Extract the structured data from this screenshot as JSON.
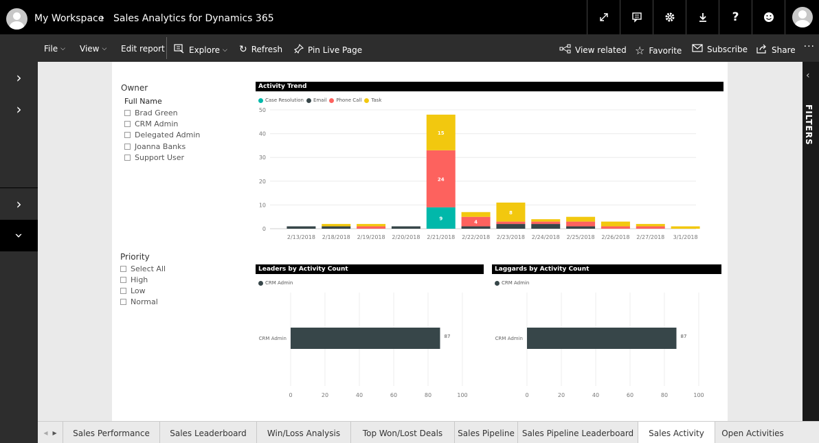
{
  "header": {
    "workspace": "My Workspace",
    "report": "Sales Analytics for Dynamics 365",
    "icons": [
      "expand-icon",
      "comment-icon",
      "gear-icon",
      "download-icon",
      "help-icon",
      "smiley-icon",
      "avatar"
    ]
  },
  "toolbar": {
    "file": "File",
    "view": "View",
    "edit_report": "Edit report",
    "explore": "Explore",
    "refresh": "Refresh",
    "pin_live_page": "Pin Live Page",
    "view_related": "View related",
    "favorite": "Favorite",
    "subscribe": "Subscribe",
    "share": "Share",
    "more": "···"
  },
  "filters_label": "FILTERS",
  "owner_slicer": {
    "title": "Owner",
    "field": "Full Name",
    "items": [
      "Brad Green",
      "CRM Admin",
      "Delegated Admin",
      "Joanna Banks",
      "Support User"
    ]
  },
  "priority_slicer": {
    "title": "Priority",
    "items": [
      "Select All",
      "High",
      "Low",
      "Normal"
    ]
  },
  "colors": {
    "case_resolution": "#01b8aa",
    "email": "#374649",
    "phone_call": "#fd625e",
    "task": "#f2c80f",
    "bar_dark": "#374649"
  },
  "chart_data": [
    {
      "type": "bar",
      "stacked": true,
      "title": "Activity Trend",
      "categories": [
        "2/13/2018",
        "2/18/2018",
        "2/19/2018",
        "2/20/2018",
        "2/21/2018",
        "2/22/2018",
        "2/23/2018",
        "2/24/2018",
        "2/25/2018",
        "2/26/2018",
        "2/27/2018",
        "3/1/2018"
      ],
      "series": [
        {
          "name": "Case Resolution",
          "values": [
            0,
            0,
            0,
            0,
            9,
            0,
            0,
            0,
            0,
            0,
            0,
            0
          ]
        },
        {
          "name": "Email",
          "values": [
            1,
            1,
            0,
            1,
            0,
            1,
            2,
            2,
            1,
            0,
            0,
            0
          ]
        },
        {
          "name": "Phone Call",
          "values": [
            0,
            0,
            1,
            0,
            24,
            4,
            1,
            1,
            2,
            1,
            1,
            0
          ]
        },
        {
          "name": "Task",
          "values": [
            0,
            1,
            1,
            0,
            15,
            2,
            8,
            1,
            2,
            2,
            1,
            1
          ]
        }
      ],
      "data_labels": [
        {
          "category": "2/21/2018",
          "series": "Case Resolution",
          "text": "9"
        },
        {
          "category": "2/21/2018",
          "series": "Phone Call",
          "text": "24"
        },
        {
          "category": "2/21/2018",
          "series": "Task",
          "text": "15"
        },
        {
          "category": "2/22/2018",
          "series": "Phone Call",
          "text": "4"
        },
        {
          "category": "2/23/2018",
          "series": "Task",
          "text": "8"
        }
      ],
      "ylim": [
        0,
        50
      ],
      "yticks": [
        0,
        10,
        20,
        30,
        40,
        50
      ],
      "legend": "top-left",
      "grid": true
    },
    {
      "type": "bar",
      "orientation": "horizontal",
      "title": "Leaders by Activity Count",
      "categories": [
        "CRM Admin"
      ],
      "series": [
        {
          "name": "CRM Admin",
          "values": [
            87
          ]
        }
      ],
      "data_labels": [
        "87"
      ],
      "xlim": [
        0,
        100
      ],
      "xticks": [
        0,
        20,
        40,
        60,
        80,
        100
      ],
      "legend": "top-left",
      "grid": true
    },
    {
      "type": "bar",
      "orientation": "horizontal",
      "title": "Laggards by Activity Count",
      "categories": [
        "CRM Admin"
      ],
      "series": [
        {
          "name": "CRM Admin",
          "values": [
            87
          ]
        }
      ],
      "data_labels": [
        "87"
      ],
      "xlim": [
        0,
        100
      ],
      "xticks": [
        0,
        20,
        40,
        60,
        80,
        100
      ],
      "legend": "top-left",
      "grid": true
    }
  ],
  "tabs": [
    {
      "label": "Sales Performance",
      "active": false
    },
    {
      "label": "Sales Leaderboard",
      "active": false
    },
    {
      "label": "Win/Loss Analysis",
      "active": false
    },
    {
      "label": "Top Won/Lost Deals",
      "active": false
    },
    {
      "label": "Sales Pipeline",
      "active": false
    },
    {
      "label": "Sales Pipeline Leaderboard",
      "active": false
    },
    {
      "label": "Sales Activity",
      "active": true
    },
    {
      "label": "Open Activities",
      "active": false
    }
  ]
}
